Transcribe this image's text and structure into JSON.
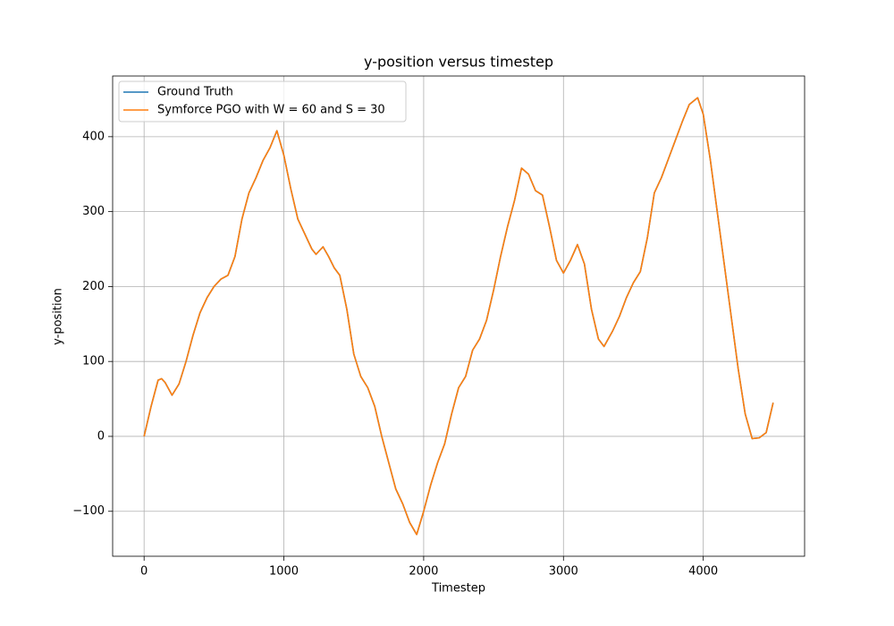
{
  "chart_data": {
    "type": "line",
    "title": "y-position versus timestep",
    "xlabel": "Timestep",
    "ylabel": "y-position",
    "x": [
      0,
      50,
      100,
      125,
      150,
      200,
      250,
      300,
      350,
      400,
      450,
      500,
      550,
      600,
      650,
      700,
      750,
      800,
      850,
      900,
      950,
      1000,
      1050,
      1100,
      1150,
      1200,
      1230,
      1280,
      1320,
      1360,
      1400,
      1450,
      1500,
      1550,
      1600,
      1650,
      1700,
      1750,
      1800,
      1850,
      1900,
      1950,
      2000,
      2050,
      2100,
      2150,
      2200,
      2250,
      2300,
      2350,
      2400,
      2450,
      2500,
      2550,
      2600,
      2650,
      2700,
      2750,
      2800,
      2850,
      2900,
      2950,
      3000,
      3050,
      3100,
      3150,
      3200,
      3250,
      3290,
      3350,
      3400,
      3450,
      3500,
      3550,
      3600,
      3650,
      3700,
      3750,
      3800,
      3850,
      3900,
      3960,
      4000,
      4050,
      4100,
      4150,
      4200,
      4250,
      4300,
      4350,
      4400,
      4450,
      4500
    ],
    "series": [
      {
        "name": "Ground Truth",
        "color": "#1f77b4",
        "values": [
          0,
          40,
          75,
          77,
          72,
          55,
          70,
          100,
          135,
          165,
          185,
          200,
          210,
          215,
          240,
          290,
          325,
          345,
          368,
          385,
          408,
          375,
          330,
          290,
          270,
          250,
          243,
          253,
          240,
          225,
          215,
          170,
          110,
          80,
          65,
          40,
          0,
          -35,
          -70,
          -90,
          -115,
          -131,
          -100,
          -65,
          -35,
          -10,
          30,
          65,
          80,
          115,
          130,
          155,
          195,
          240,
          280,
          315,
          358,
          350,
          328,
          322,
          280,
          235,
          218,
          235,
          256,
          230,
          170,
          130,
          120,
          140,
          160,
          185,
          205,
          220,
          265,
          325,
          345,
          370,
          395,
          420,
          443,
          452,
          430,
          370,
          300,
          230,
          160,
          90,
          30,
          -3,
          -2,
          5,
          45
        ]
      },
      {
        "name": "Symforce PGO with W = 60 and S = 30",
        "color": "#ff7f0e",
        "values": [
          0,
          40,
          75,
          77,
          72,
          55,
          70,
          100,
          135,
          165,
          185,
          200,
          210,
          215,
          240,
          290,
          325,
          345,
          368,
          385,
          408,
          375,
          330,
          290,
          270,
          250,
          243,
          253,
          240,
          225,
          215,
          170,
          110,
          80,
          65,
          40,
          0,
          -35,
          -70,
          -90,
          -115,
          -131,
          -100,
          -65,
          -35,
          -10,
          30,
          65,
          80,
          115,
          130,
          155,
          195,
          240,
          280,
          315,
          358,
          350,
          328,
          322,
          280,
          235,
          218,
          235,
          256,
          230,
          170,
          130,
          120,
          140,
          160,
          185,
          205,
          220,
          265,
          325,
          345,
          370,
          395,
          420,
          443,
          452,
          430,
          370,
          300,
          230,
          160,
          90,
          30,
          -3,
          -2,
          5,
          45
        ]
      }
    ],
    "xlim": [
      -225,
      4725
    ],
    "xticks": [
      0,
      1000,
      2000,
      3000,
      4000
    ],
    "ylim": [
      -160,
      481
    ],
    "yticks": [
      {
        "value": -100,
        "label": "−100"
      },
      0,
      100,
      200,
      300,
      400
    ],
    "grid": true,
    "legend": "upper left"
  }
}
